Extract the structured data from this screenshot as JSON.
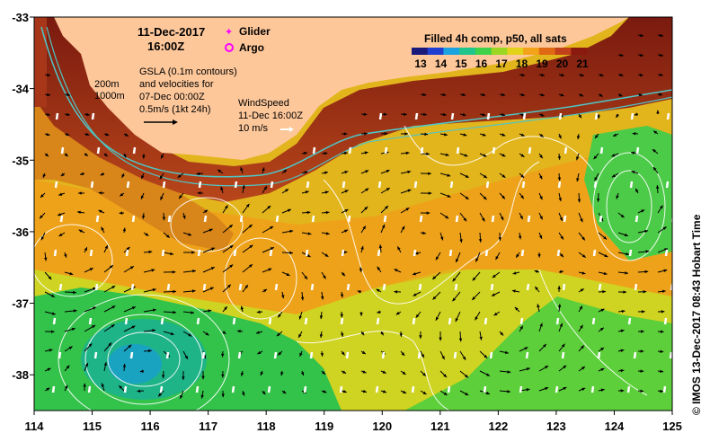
{
  "title": {
    "date": "11-Dec-2017",
    "time": "16:00Z"
  },
  "legend_markers": {
    "glider": "Glider",
    "argo": "Argo",
    "glider_color": "#ff00ff",
    "argo_color": "#ff00ff"
  },
  "colorbar": {
    "title": "Filled 4h comp, p50, all sats",
    "ticks": [
      "13",
      "14",
      "15",
      "16",
      "17",
      "18",
      "19",
      "20",
      "21"
    ],
    "colors": [
      "#1a1a7a",
      "#1f3fd0",
      "#1aa3e0",
      "#1fc58a",
      "#3ed14a",
      "#9ad622",
      "#e2d21a",
      "#f2a31a",
      "#e06a14",
      "#c2401a",
      "#8a1a0f"
    ]
  },
  "annotations": {
    "isobath_200": "200m",
    "isobath_1000": "1000m",
    "gsla_line1": "GSLA (0.1m contours)",
    "gsla_line2": "and velocities for",
    "gsla_line3": "07-Dec 00:00Z",
    "velocity_scale": "0.5m/s (1kt 24h)",
    "wind_line1": "WindSpeed",
    "wind_line2": "11-Dec 16:00Z",
    "wind_scale": "10 m/s"
  },
  "axes": {
    "x_ticks": [
      "114",
      "115",
      "116",
      "117",
      "118",
      "119",
      "120",
      "121",
      "122",
      "123",
      "124",
      "125"
    ],
    "y_ticks": [
      "-33",
      "-34",
      "-35",
      "-36",
      "-37",
      "-38"
    ],
    "lon_range": [
      114,
      125
    ],
    "lat_range": [
      -38.5,
      -33
    ]
  },
  "credit": "© IMOS 13-Dec-2017 08:43 Hobart Time",
  "colors": {
    "land": "#fdc79a",
    "contour": "#ffffff",
    "isobath": "#4fc6c6",
    "velocity_arrow": "#000000",
    "wind_arrow": "#ffffff"
  }
}
